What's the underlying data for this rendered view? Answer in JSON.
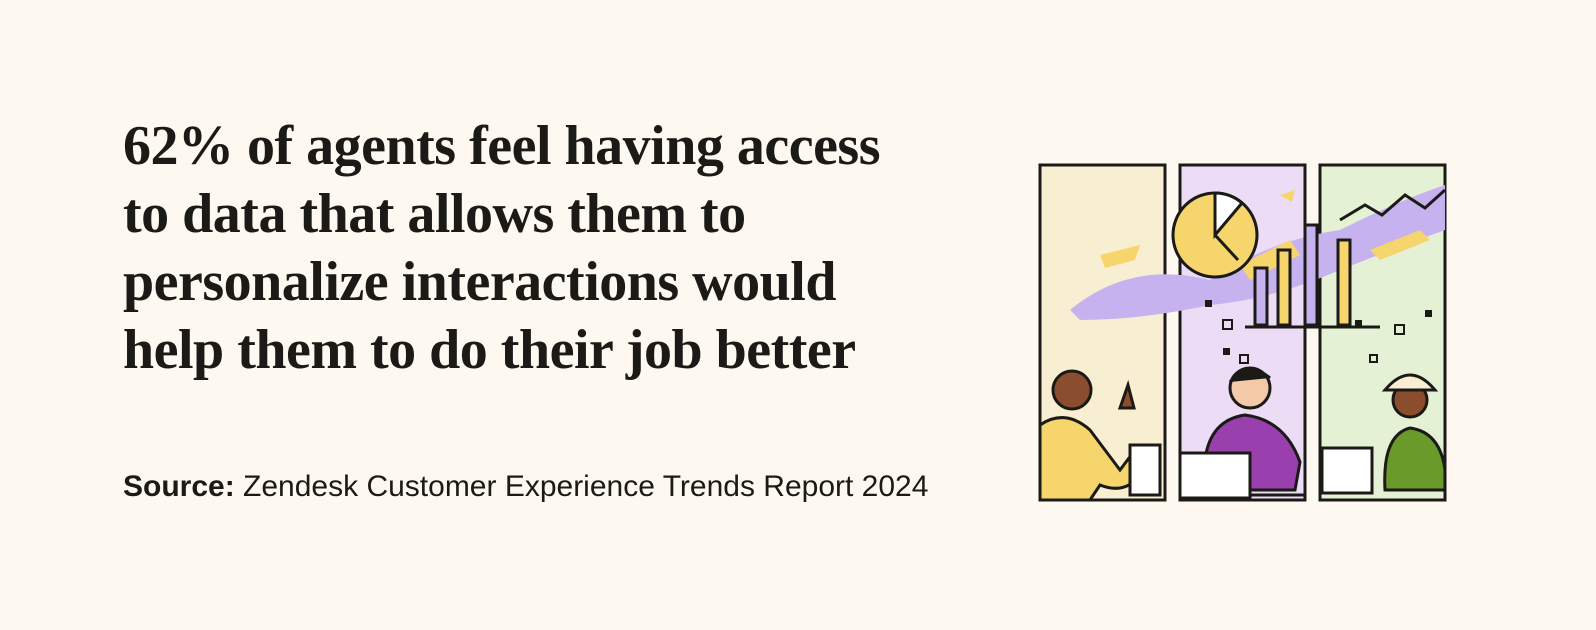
{
  "headline": {
    "lines": [
      "62% of agents feel having access",
      "to data that allows them to",
      "personalize interactions would",
      "help them to do their job better"
    ]
  },
  "source": {
    "label": "Source:",
    "text": "Zendesk Customer Experience Trends Report 2024"
  }
}
